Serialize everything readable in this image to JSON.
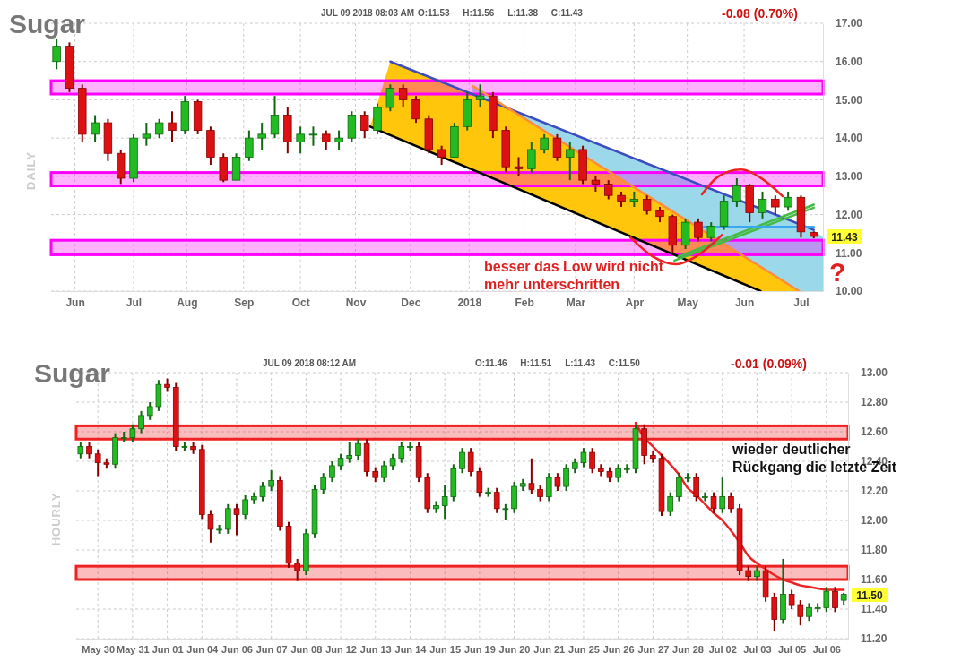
{
  "chart_data": [
    {
      "type": "candlestick",
      "title": "Sugar",
      "subtitle": "JUL 09 2018 08:03 AM",
      "ylabel": "DAILY",
      "grid": true,
      "xlim": [
        "2017-05-19",
        "2018-07-14"
      ],
      "xticks": [
        {
          "value": "2017-06-01",
          "label": "Jun"
        },
        {
          "value": "2017-07-03",
          "label": "Jul"
        },
        {
          "value": "2017-08-01",
          "label": "Aug"
        },
        {
          "value": "2017-09-01",
          "label": "Sep"
        },
        {
          "value": "2017-10-02",
          "label": "Oct"
        },
        {
          "value": "2017-11-01",
          "label": "Nov"
        },
        {
          "value": "2017-12-01",
          "label": "Dec"
        },
        {
          "value": "2018-01-02",
          "label": "2018"
        },
        {
          "value": "2018-02-01",
          "label": "Feb"
        },
        {
          "value": "2018-03-01",
          "label": "Mar"
        },
        {
          "value": "2018-04-02",
          "label": "Apr"
        },
        {
          "value": "2018-05-01",
          "label": "May"
        },
        {
          "value": "2018-06-01",
          "label": "Jun"
        },
        {
          "value": "2018-07-02",
          "label": "Jul"
        }
      ],
      "ylim": [
        10,
        17
      ],
      "yticks": [
        {
          "value": 10,
          "label": "10.00"
        },
        {
          "value": 11,
          "label": "11.00"
        },
        {
          "value": 12,
          "label": "12.00"
        },
        {
          "value": 13,
          "label": "13.00"
        },
        {
          "value": 14,
          "label": "14.00"
        },
        {
          "value": 15,
          "label": "15.00"
        },
        {
          "value": 16,
          "label": "16.00"
        },
        {
          "value": 17,
          "label": "17.00"
        }
      ],
      "x": [
        "2017-05-22",
        "2017-05-29",
        "2017-06-05",
        "2017-06-12",
        "2017-06-19",
        "2017-06-26",
        "2017-07-03",
        "2017-07-10",
        "2017-07-17",
        "2017-07-24",
        "2017-07-31",
        "2017-08-07",
        "2017-08-14",
        "2017-08-21",
        "2017-08-28",
        "2017-09-04",
        "2017-09-11",
        "2017-09-18",
        "2017-09-25",
        "2017-10-02",
        "2017-10-09",
        "2017-10-16",
        "2017-10-23",
        "2017-10-30",
        "2017-11-06",
        "2017-11-13",
        "2017-11-20",
        "2017-11-27",
        "2017-12-04",
        "2017-12-11",
        "2017-12-18",
        "2017-12-25",
        "2018-01-01",
        "2018-01-08",
        "2018-01-15",
        "2018-01-22",
        "2018-01-29",
        "2018-02-05",
        "2018-02-12",
        "2018-02-19",
        "2018-02-26",
        "2018-03-05",
        "2018-03-12",
        "2018-03-19",
        "2018-03-26",
        "2018-04-02",
        "2018-04-09",
        "2018-04-16",
        "2018-04-23",
        "2018-04-30",
        "2018-05-07",
        "2018-05-14",
        "2018-05-21",
        "2018-05-28",
        "2018-06-04",
        "2018-06-11",
        "2018-06-18",
        "2018-06-25",
        "2018-07-02",
        "2018-07-09"
      ],
      "ohlc": [
        [
          16.0,
          16.6,
          15.8,
          16.4
        ],
        [
          16.4,
          16.5,
          15.2,
          15.3
        ],
        [
          15.3,
          15.4,
          13.9,
          14.1
        ],
        [
          14.1,
          14.6,
          13.9,
          14.4
        ],
        [
          14.4,
          14.5,
          13.4,
          13.6
        ],
        [
          13.6,
          13.7,
          12.8,
          12.95
        ],
        [
          12.95,
          14.1,
          12.85,
          14.0
        ],
        [
          14.0,
          14.4,
          13.8,
          14.1
        ],
        [
          14.1,
          14.5,
          14.0,
          14.4
        ],
        [
          14.4,
          14.7,
          13.9,
          14.2
        ],
        [
          14.2,
          15.1,
          14.1,
          14.95
        ],
        [
          14.95,
          15.0,
          14.1,
          14.2
        ],
        [
          14.2,
          14.3,
          13.3,
          13.5
        ],
        [
          13.5,
          13.6,
          12.85,
          12.9
        ],
        [
          12.9,
          13.6,
          12.9,
          13.5
        ],
        [
          13.5,
          14.2,
          13.4,
          14.0
        ],
        [
          14.0,
          14.4,
          13.7,
          14.1
        ],
        [
          14.1,
          15.1,
          14.0,
          14.6
        ],
        [
          14.6,
          14.8,
          13.6,
          13.9
        ],
        [
          13.9,
          14.3,
          13.6,
          14.1
        ],
        [
          14.1,
          14.3,
          13.8,
          14.1
        ],
        [
          14.1,
          14.2,
          13.7,
          13.9
        ],
        [
          13.9,
          14.2,
          13.7,
          14.0
        ],
        [
          14.0,
          14.7,
          13.9,
          14.6
        ],
        [
          14.6,
          14.7,
          14.0,
          14.2
        ],
        [
          14.2,
          14.9,
          14.1,
          14.8
        ],
        [
          14.8,
          15.4,
          14.7,
          15.3
        ],
        [
          15.3,
          15.4,
          14.8,
          15.0
        ],
        [
          15.0,
          15.1,
          14.4,
          14.5
        ],
        [
          14.5,
          14.6,
          13.6,
          13.7
        ],
        [
          13.7,
          13.8,
          13.3,
          13.5
        ],
        [
          13.5,
          14.4,
          13.5,
          14.3
        ],
        [
          14.3,
          15.2,
          14.2,
          15.0
        ],
        [
          15.0,
          15.4,
          14.8,
          15.1
        ],
        [
          15.1,
          15.2,
          14.0,
          14.2
        ],
        [
          14.2,
          14.3,
          13.1,
          13.25
        ],
        [
          13.25,
          13.5,
          13.0,
          13.2
        ],
        [
          13.2,
          13.9,
          13.1,
          13.7
        ],
        [
          13.7,
          14.1,
          13.6,
          14.0
        ],
        [
          14.0,
          14.1,
          13.4,
          13.5
        ],
        [
          13.5,
          13.9,
          12.9,
          13.7
        ],
        [
          13.7,
          13.8,
          12.8,
          12.9
        ],
        [
          12.9,
          13.0,
          12.6,
          12.8
        ],
        [
          12.8,
          12.9,
          12.4,
          12.5
        ],
        [
          12.5,
          12.6,
          12.2,
          12.35
        ],
        [
          12.35,
          12.6,
          12.2,
          12.4
        ],
        [
          12.4,
          12.5,
          12.0,
          12.1
        ],
        [
          12.1,
          12.2,
          11.8,
          11.95
        ],
        [
          11.95,
          12.0,
          11.0,
          11.2
        ],
        [
          11.2,
          11.9,
          11.1,
          11.8
        ],
        [
          11.8,
          11.9,
          11.3,
          11.4
        ],
        [
          11.4,
          11.8,
          11.3,
          11.7
        ],
        [
          11.7,
          12.5,
          11.6,
          12.35
        ],
        [
          12.35,
          12.95,
          12.2,
          12.75
        ],
        [
          12.75,
          12.8,
          11.8,
          12.05
        ],
        [
          12.05,
          12.6,
          11.9,
          12.4
        ],
        [
          12.4,
          12.5,
          12.0,
          12.2
        ],
        [
          12.2,
          12.6,
          12.1,
          12.45
        ],
        [
          12.45,
          12.5,
          11.4,
          11.55
        ],
        [
          11.53,
          11.56,
          11.38,
          11.43
        ]
      ],
      "series": [
        {
          "type": "line",
          "color": "#3b4cc0",
          "x": [
            "2017-11-20",
            "2018-07-09"
          ],
          "values": [
            16.0,
            11.6
          ]
        },
        {
          "type": "line",
          "color": "#ff8c3a",
          "x": [
            "2018-01-04",
            "2018-05-18",
            "2018-07-01"
          ],
          "values": [
            15.36,
            11.33,
            10.0
          ]
        },
        {
          "type": "line",
          "color": "#000000",
          "x": [
            "2017-11-09",
            "2018-06-10"
          ],
          "values": [
            14.3,
            10.0
          ]
        },
        {
          "type": "line",
          "color": "#44bb44",
          "x": [
            "2018-04-24",
            "2018-07-09"
          ],
          "values": [
            10.8,
            12.18
          ]
        },
        {
          "type": "line",
          "color": "#44bb44",
          "x": [
            "2018-04-26",
            "2018-07-09"
          ],
          "values": [
            10.9,
            12.26
          ]
        },
        {
          "type": "line",
          "color": "#3aa8f0",
          "x": [
            "2018-05-10",
            "2018-07-09"
          ],
          "values": [
            11.68,
            11.68
          ]
        },
        {
          "type": "line",
          "color": "#ee2222",
          "x": [
            "2018-03-31",
            "2018-04-12",
            "2018-04-25",
            "2018-05-06",
            "2018-05-20"
          ],
          "values": [
            11.4,
            10.91,
            10.7,
            10.91,
            11.47
          ]
        },
        {
          "type": "line",
          "color": "#ee2222",
          "x": [
            "2018-05-09",
            "2018-05-18",
            "2018-05-30",
            "2018-06-11",
            "2018-06-22"
          ],
          "values": [
            12.53,
            13.0,
            13.18,
            12.93,
            12.48
          ]
        }
      ],
      "bands": [
        {
          "axis": "y",
          "from": 15.15,
          "to": 15.5,
          "color": "#ff00ff"
        },
        {
          "axis": "y",
          "from": 12.75,
          "to": 13.1,
          "color": "#ff00ff"
        },
        {
          "axis": "y",
          "from": 10.95,
          "to": 11.33,
          "color": "#ff00ff"
        }
      ],
      "annotations": [
        "O:11.53 H:11.56 L:11.38 C:11.43",
        "-0.08 (0.70%)",
        "besser das Low wird nicht mehr unterschritten",
        "?",
        "11.43"
      ]
    },
    {
      "type": "candlestick",
      "title": "Sugar",
      "subtitle": "JUL 09 2018 08:12 AM",
      "ylabel": "HOURLY",
      "grid": true,
      "categories": [
        null,
        null,
        "May 30",
        null,
        null,
        null,
        "May 31",
        null,
        null,
        null,
        "Jun 01",
        null,
        null,
        null,
        "Jun 04",
        null,
        null,
        null,
        "Jun 06",
        null,
        null,
        null,
        "Jun 07",
        null,
        null,
        null,
        "Jun 08",
        null,
        null,
        null,
        "Jun 12",
        null,
        null,
        null,
        "Jun 13",
        null,
        null,
        null,
        "Jun 14",
        null,
        null,
        null,
        "Jun 15",
        null,
        null,
        null,
        "Jun 19",
        null,
        null,
        null,
        "Jun 20",
        null,
        null,
        null,
        "Jun 21",
        null,
        null,
        null,
        "Jun 25",
        null,
        null,
        null,
        "Jun 26",
        null,
        null,
        null,
        "Jun 27",
        null,
        null,
        null,
        "Jun 28",
        null,
        null,
        null,
        "Jul 02",
        null,
        null,
        null,
        "Jul 03",
        null,
        null,
        null,
        "Jul 05",
        null,
        null,
        null,
        "Jul 06",
        null,
        null
      ],
      "ylim": [
        11.2,
        13.0
      ],
      "yticks": [
        {
          "value": 11.2,
          "label": "11.20"
        },
        {
          "value": 11.4,
          "label": "11.40"
        },
        {
          "value": 11.6,
          "label": "11.60"
        },
        {
          "value": 11.8,
          "label": "11.80"
        },
        {
          "value": 12.0,
          "label": "12.00"
        },
        {
          "value": 12.2,
          "label": "12.20"
        },
        {
          "value": 12.4,
          "label": "12.40"
        },
        {
          "value": 12.6,
          "label": "12.60"
        },
        {
          "value": 12.8,
          "label": "12.80"
        },
        {
          "value": 13.0,
          "label": "13.00"
        }
      ],
      "ohlc": [
        [
          12.45,
          12.53,
          12.42,
          12.5
        ],
        [
          12.5,
          12.53,
          12.42,
          12.45
        ],
        [
          12.45,
          12.48,
          12.3,
          12.39
        ],
        [
          12.39,
          12.42,
          12.35,
          12.38
        ],
        [
          12.38,
          12.59,
          12.35,
          12.56
        ],
        [
          12.56,
          12.6,
          12.53,
          12.56
        ],
        [
          12.56,
          12.65,
          12.53,
          12.62
        ],
        [
          12.62,
          12.74,
          12.59,
          12.71
        ],
        [
          12.71,
          12.8,
          12.68,
          12.77
        ],
        [
          12.77,
          12.95,
          12.74,
          12.92
        ],
        [
          12.92,
          12.96,
          12.87,
          12.9
        ],
        [
          12.9,
          12.93,
          12.47,
          12.5
        ],
        [
          12.5,
          12.53,
          12.47,
          12.5
        ],
        [
          12.5,
          12.53,
          12.45,
          12.48
        ],
        [
          12.48,
          12.51,
          12.01,
          12.04
        ],
        [
          12.04,
          12.07,
          11.85,
          11.94
        ],
        [
          11.94,
          11.97,
          11.91,
          11.94
        ],
        [
          11.94,
          12.11,
          11.91,
          12.08
        ],
        [
          12.08,
          12.11,
          11.9,
          12.04
        ],
        [
          12.04,
          12.17,
          12.01,
          12.14
        ],
        [
          12.14,
          12.19,
          12.11,
          12.16
        ],
        [
          12.16,
          12.26,
          12.13,
          12.23
        ],
        [
          12.23,
          12.34,
          12.2,
          12.27
        ],
        [
          12.27,
          12.3,
          11.93,
          11.96
        ],
        [
          11.96,
          11.99,
          11.68,
          11.71
        ],
        [
          11.71,
          11.74,
          11.59,
          11.66
        ],
        [
          11.66,
          11.94,
          11.63,
          11.91
        ],
        [
          11.91,
          12.24,
          11.88,
          12.21
        ],
        [
          12.21,
          12.32,
          12.18,
          12.29
        ],
        [
          12.29,
          12.4,
          12.26,
          12.37
        ],
        [
          12.37,
          12.45,
          12.34,
          12.42
        ],
        [
          12.42,
          12.53,
          12.39,
          12.44
        ],
        [
          12.44,
          12.55,
          12.41,
          12.52
        ],
        [
          12.52,
          12.55,
          12.3,
          12.33
        ],
        [
          12.33,
          12.36,
          12.26,
          12.29
        ],
        [
          12.29,
          12.4,
          12.26,
          12.37
        ],
        [
          12.37,
          12.45,
          12.34,
          12.42
        ],
        [
          12.42,
          12.53,
          12.39,
          12.5
        ],
        [
          12.5,
          12.53,
          12.47,
          12.5
        ],
        [
          12.5,
          12.53,
          12.26,
          12.29
        ],
        [
          12.29,
          12.32,
          12.05,
          12.08
        ],
        [
          12.08,
          12.13,
          12.05,
          12.1
        ],
        [
          12.1,
          12.24,
          12.01,
          12.16
        ],
        [
          12.16,
          12.38,
          12.13,
          12.35
        ],
        [
          12.35,
          12.49,
          12.32,
          12.46
        ],
        [
          12.46,
          12.49,
          12.3,
          12.33
        ],
        [
          12.33,
          12.36,
          12.16,
          12.19
        ],
        [
          12.19,
          12.22,
          12.16,
          12.19
        ],
        [
          12.19,
          12.22,
          12.05,
          12.08
        ],
        [
          12.08,
          12.11,
          12.0,
          12.08
        ],
        [
          12.08,
          12.26,
          12.05,
          12.23
        ],
        [
          12.23,
          12.28,
          12.2,
          12.25
        ],
        [
          12.25,
          12.42,
          12.18,
          12.21
        ],
        [
          12.21,
          12.24,
          12.13,
          12.16
        ],
        [
          12.16,
          12.32,
          12.13,
          12.29
        ],
        [
          12.29,
          12.32,
          12.2,
          12.23
        ],
        [
          12.23,
          12.38,
          12.2,
          12.35
        ],
        [
          12.35,
          12.42,
          12.32,
          12.39
        ],
        [
          12.39,
          12.49,
          12.36,
          12.46
        ],
        [
          12.46,
          12.49,
          12.32,
          12.35
        ],
        [
          12.35,
          12.38,
          12.3,
          12.33
        ],
        [
          12.33,
          12.36,
          12.26,
          12.29
        ],
        [
          12.29,
          12.38,
          12.26,
          12.35
        ],
        [
          12.35,
          12.38,
          12.32,
          12.35
        ],
        [
          12.35,
          12.65,
          12.32,
          12.62
        ],
        [
          12.62,
          12.65,
          12.38,
          12.44
        ],
        [
          12.44,
          12.47,
          12.39,
          12.42
        ],
        [
          12.42,
          12.45,
          12.03,
          12.06
        ],
        [
          12.06,
          12.19,
          12.03,
          12.16
        ],
        [
          12.16,
          12.32,
          12.13,
          12.29
        ],
        [
          12.29,
          12.32,
          12.26,
          12.29
        ],
        [
          12.29,
          12.32,
          12.13,
          12.16
        ],
        [
          12.16,
          12.19,
          12.13,
          12.16
        ],
        [
          12.16,
          12.19,
          12.05,
          12.08
        ],
        [
          12.08,
          12.29,
          12.05,
          12.16
        ],
        [
          12.16,
          12.19,
          12.05,
          12.08
        ],
        [
          12.08,
          12.11,
          11.63,
          11.66
        ],
        [
          11.66,
          11.69,
          11.59,
          11.62
        ],
        [
          11.62,
          11.69,
          11.59,
          11.66
        ],
        [
          11.66,
          11.69,
          11.45,
          11.48
        ],
        [
          11.48,
          11.51,
          11.25,
          11.33
        ],
        [
          11.33,
          11.74,
          11.3,
          11.5
        ],
        [
          11.5,
          11.53,
          11.4,
          11.43
        ],
        [
          11.43,
          11.46,
          11.29,
          11.35
        ],
        [
          11.35,
          11.44,
          11.32,
          11.41
        ],
        [
          11.41,
          11.44,
          11.38,
          11.41
        ],
        [
          11.41,
          11.55,
          11.38,
          11.52
        ],
        [
          11.52,
          11.55,
          11.38,
          11.41
        ],
        [
          11.46,
          11.51,
          11.43,
          11.5
        ]
      ],
      "series": [
        {
          "type": "line",
          "color": "#ee2222",
          "values": [
            null,
            null,
            null,
            null,
            null,
            null,
            null,
            null,
            null,
            null,
            null,
            null,
            null,
            null,
            null,
            null,
            null,
            null,
            null,
            null,
            null,
            null,
            null,
            null,
            null,
            null,
            null,
            null,
            null,
            null,
            null,
            null,
            null,
            null,
            null,
            null,
            null,
            null,
            null,
            null,
            null,
            null,
            null,
            null,
            null,
            null,
            null,
            null,
            null,
            null,
            null,
            null,
            null,
            null,
            null,
            null,
            null,
            null,
            null,
            null,
            null,
            null,
            null,
            null,
            12.66,
            12.56,
            12.5,
            12.44,
            12.38,
            12.31,
            12.22,
            12.17,
            12.11,
            12.05,
            12.0,
            11.93,
            11.85,
            11.76,
            11.71,
            11.67,
            11.63,
            11.6,
            11.58,
            11.56,
            11.55,
            11.54,
            11.53,
            11.53,
            11.53
          ]
        }
      ],
      "bands": [
        {
          "axis": "y",
          "from": 12.55,
          "to": 12.64,
          "color": "#ee2222"
        },
        {
          "axis": "y",
          "from": 11.6,
          "to": 11.69,
          "color": "#ee2222"
        }
      ],
      "annotations": [
        "O:11.46 H:11.51 L:11.43 C:11.50",
        "-0.01 (0.09%)",
        "wieder deutlicher Rückgang die letzte Zeit",
        "11.50"
      ]
    }
  ]
}
